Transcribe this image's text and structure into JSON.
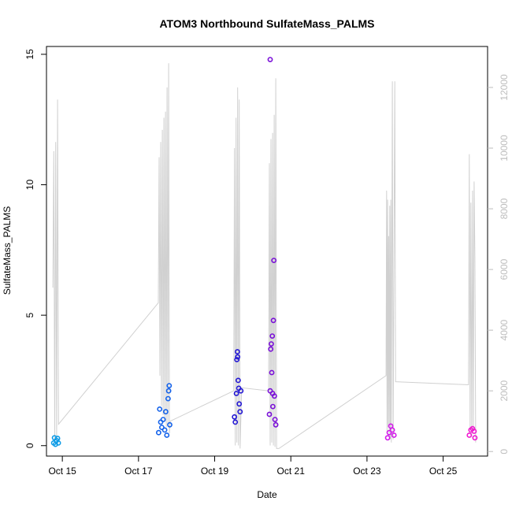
{
  "chart_data": {
    "type": "scatter",
    "title": "ATOM3 Northbound SulfateMass_PALMS",
    "xlabel": "Date",
    "ylabel": "SulfateMass_PALMS",
    "x_ticks": [
      "Oct 15",
      "Oct 17",
      "Oct 19",
      "Oct 21",
      "Oct 23",
      "Oct 25"
    ],
    "y_ticks": [
      "0",
      "5",
      "10",
      "15"
    ],
    "y2_ticks": [
      "0",
      "2000",
      "4000",
      "6000",
      "8000",
      "10000",
      "12000"
    ],
    "xlim": [
      "2017-10-14T14:00",
      "2017-10-26T04:00"
    ],
    "ylim": [
      -0.4,
      15.3
    ],
    "y2lim": [
      -150,
      13350
    ],
    "grid": false,
    "legend": "none",
    "colors": {
      "line": "#d0d0d0",
      "axis": "#000000",
      "right_axis": "#bdbdbd",
      "flight_colors": [
        "#0f9ce6",
        "#1462ea",
        "#2418d4",
        "#7a10d8",
        "#d21cea",
        "#f01ad0"
      ]
    },
    "series": [
      {
        "type": "line",
        "axis": "right",
        "points": [
          [
            "2017-10-14T18:00",
            5400
          ],
          [
            "2017-10-14T18:36",
            9900
          ],
          [
            "2017-10-14T19:12",
            300
          ],
          [
            "2017-10-14T19:48",
            10200
          ],
          [
            "2017-10-14T20:24",
            500
          ],
          [
            "2017-10-14T21:00",
            11600
          ],
          [
            "2017-10-14T21:36",
            900
          ],
          [
            "2017-10-17T12:30",
            4900
          ],
          [
            "2017-10-17T13:00",
            9700
          ],
          [
            "2017-10-17T13:30",
            2500
          ],
          [
            "2017-10-17T14:00",
            10200
          ],
          [
            "2017-10-17T14:30",
            1500
          ],
          [
            "2017-10-17T15:00",
            10600
          ],
          [
            "2017-10-17T15:30",
            1200
          ],
          [
            "2017-10-17T16:00",
            11000
          ],
          [
            "2017-10-17T16:30",
            1000
          ],
          [
            "2017-10-17T17:00",
            11200
          ],
          [
            "2017-10-17T17:30",
            800
          ],
          [
            "2017-10-17T18:00",
            12000
          ],
          [
            "2017-10-17T18:30",
            900
          ],
          [
            "2017-10-17T19:00",
            12800
          ],
          [
            "2017-10-17T19:30",
            600
          ],
          [
            "2017-10-17T20:00",
            1000
          ],
          [
            "2017-10-19T12:00",
            2000
          ],
          [
            "2017-10-19T12:30",
            10000
          ],
          [
            "2017-10-19T13:00",
            200
          ],
          [
            "2017-10-19T13:30",
            11000
          ],
          [
            "2017-10-19T14:00",
            300
          ],
          [
            "2017-10-19T14:30",
            12000
          ],
          [
            "2017-10-19T15:00",
            200
          ],
          [
            "2017-10-19T15:30",
            11600
          ],
          [
            "2017-10-19T16:00",
            100
          ],
          [
            "2017-10-19T17:00",
            2100
          ],
          [
            "2017-10-20T10:00",
            2000
          ],
          [
            "2017-10-20T10:30",
            9500
          ],
          [
            "2017-10-20T11:00",
            200
          ],
          [
            "2017-10-20T11:30",
            10300
          ],
          [
            "2017-10-20T12:00",
            300
          ],
          [
            "2017-10-20T12:30",
            10500
          ],
          [
            "2017-10-20T13:00",
            200
          ],
          [
            "2017-10-20T13:30",
            11100
          ],
          [
            "2017-10-20T14:00",
            150
          ],
          [
            "2017-10-20T14:30",
            12300
          ],
          [
            "2017-10-20T15:00",
            100
          ],
          [
            "2017-10-20T16:30",
            100
          ],
          [
            "2017-10-23T12:00",
            2500
          ],
          [
            "2017-10-23T12:20",
            8600
          ],
          [
            "2017-10-23T12:40",
            600
          ],
          [
            "2017-10-23T13:00",
            8300
          ],
          [
            "2017-10-23T13:20",
            800
          ],
          [
            "2017-10-23T13:40",
            7100
          ],
          [
            "2017-10-23T14:00",
            500
          ],
          [
            "2017-10-23T14:20",
            8100
          ],
          [
            "2017-10-23T14:40",
            400
          ],
          [
            "2017-10-23T15:00",
            8300
          ],
          [
            "2017-10-23T15:20",
            300
          ],
          [
            "2017-10-23T16:00",
            12200
          ],
          [
            "2017-10-23T16:30",
            400
          ],
          [
            "2017-10-23T17:30",
            12200
          ],
          [
            "2017-10-23T18:00",
            2300
          ],
          [
            "2017-10-25T16:00",
            2200
          ],
          [
            "2017-10-25T16:30",
            9800
          ],
          [
            "2017-10-25T17:00",
            700
          ],
          [
            "2017-10-25T17:30",
            8200
          ],
          [
            "2017-10-25T18:00",
            500
          ],
          [
            "2017-10-25T18:30",
            8600
          ],
          [
            "2017-10-25T19:00",
            700
          ],
          [
            "2017-10-25T19:30",
            8900
          ],
          [
            "2017-10-25T20:00",
            6400
          ],
          [
            "2017-10-25T20:30",
            300
          ]
        ]
      },
      {
        "type": "points",
        "axis": "left",
        "points": [
          [
            "2017-10-14T18:30",
            0.1,
            0
          ],
          [
            "2017-10-14T19:00",
            0.3,
            0
          ],
          [
            "2017-10-14T19:40",
            0.05,
            0
          ],
          [
            "2017-10-14T20:20",
            0.2,
            0
          ],
          [
            "2017-10-14T21:00",
            0.28,
            0
          ],
          [
            "2017-10-14T21:30",
            0.1,
            0
          ],
          [
            "2017-10-17T12:40",
            0.5,
            1
          ],
          [
            "2017-10-17T13:20",
            1.4,
            1
          ],
          [
            "2017-10-17T14:00",
            0.9,
            1
          ],
          [
            "2017-10-17T14:40",
            0.7,
            1
          ],
          [
            "2017-10-17T15:30",
            1.0,
            1
          ],
          [
            "2017-10-17T16:30",
            0.6,
            1
          ],
          [
            "2017-10-17T17:10",
            1.3,
            1
          ],
          [
            "2017-10-17T17:50",
            0.4,
            1
          ],
          [
            "2017-10-17T18:40",
            1.8,
            1
          ],
          [
            "2017-10-17T19:00",
            2.1,
            1
          ],
          [
            "2017-10-17T19:20",
            2.3,
            1
          ],
          [
            "2017-10-17T19:40",
            0.8,
            1
          ],
          [
            "2017-10-19T12:30",
            1.1,
            2
          ],
          [
            "2017-10-19T13:00",
            0.9,
            2
          ],
          [
            "2017-10-19T13:40",
            2.0,
            2
          ],
          [
            "2017-10-19T14:00",
            3.3,
            2
          ],
          [
            "2017-10-19T14:20",
            3.6,
            2
          ],
          [
            "2017-10-19T14:30",
            3.4,
            2
          ],
          [
            "2017-10-19T14:50",
            2.5,
            2
          ],
          [
            "2017-10-19T15:10",
            2.2,
            2
          ],
          [
            "2017-10-19T15:30",
            1.6,
            2
          ],
          [
            "2017-10-19T16:00",
            1.3,
            2
          ],
          [
            "2017-10-19T16:30",
            2.1,
            2
          ],
          [
            "2017-10-20T10:30",
            1.2,
            3
          ],
          [
            "2017-10-20T11:00",
            2.1,
            3
          ],
          [
            "2017-10-20T11:20",
            3.7,
            3
          ],
          [
            "2017-10-20T11:40",
            3.9,
            3
          ],
          [
            "2017-10-20T12:00",
            2.8,
            3
          ],
          [
            "2017-10-20T12:20",
            4.2,
            3
          ],
          [
            "2017-10-20T12:30",
            2.0,
            3
          ],
          [
            "2017-10-20T12:40",
            1.5,
            3
          ],
          [
            "2017-10-20T13:00",
            4.8,
            3
          ],
          [
            "2017-10-20T13:20",
            7.1,
            3
          ],
          [
            "2017-10-20T13:40",
            1.9,
            3
          ],
          [
            "2017-10-20T14:00",
            1.0,
            3
          ],
          [
            "2017-10-20T14:30",
            0.8,
            3
          ],
          [
            "2017-10-20T11:00",
            14.8,
            3
          ],
          [
            "2017-10-23T13:00",
            0.3,
            4
          ],
          [
            "2017-10-23T14:00",
            0.5,
            4
          ],
          [
            "2017-10-23T15:00",
            0.75,
            4
          ],
          [
            "2017-10-23T16:00",
            0.6,
            4
          ],
          [
            "2017-10-23T17:00",
            0.4,
            4
          ],
          [
            "2017-10-25T16:30",
            0.4,
            5
          ],
          [
            "2017-10-25T17:30",
            0.6,
            5
          ],
          [
            "2017-10-25T18:30",
            0.65,
            5
          ],
          [
            "2017-10-25T19:30",
            0.55,
            5
          ],
          [
            "2017-10-25T20:00",
            0.3,
            5
          ]
        ]
      }
    ]
  }
}
